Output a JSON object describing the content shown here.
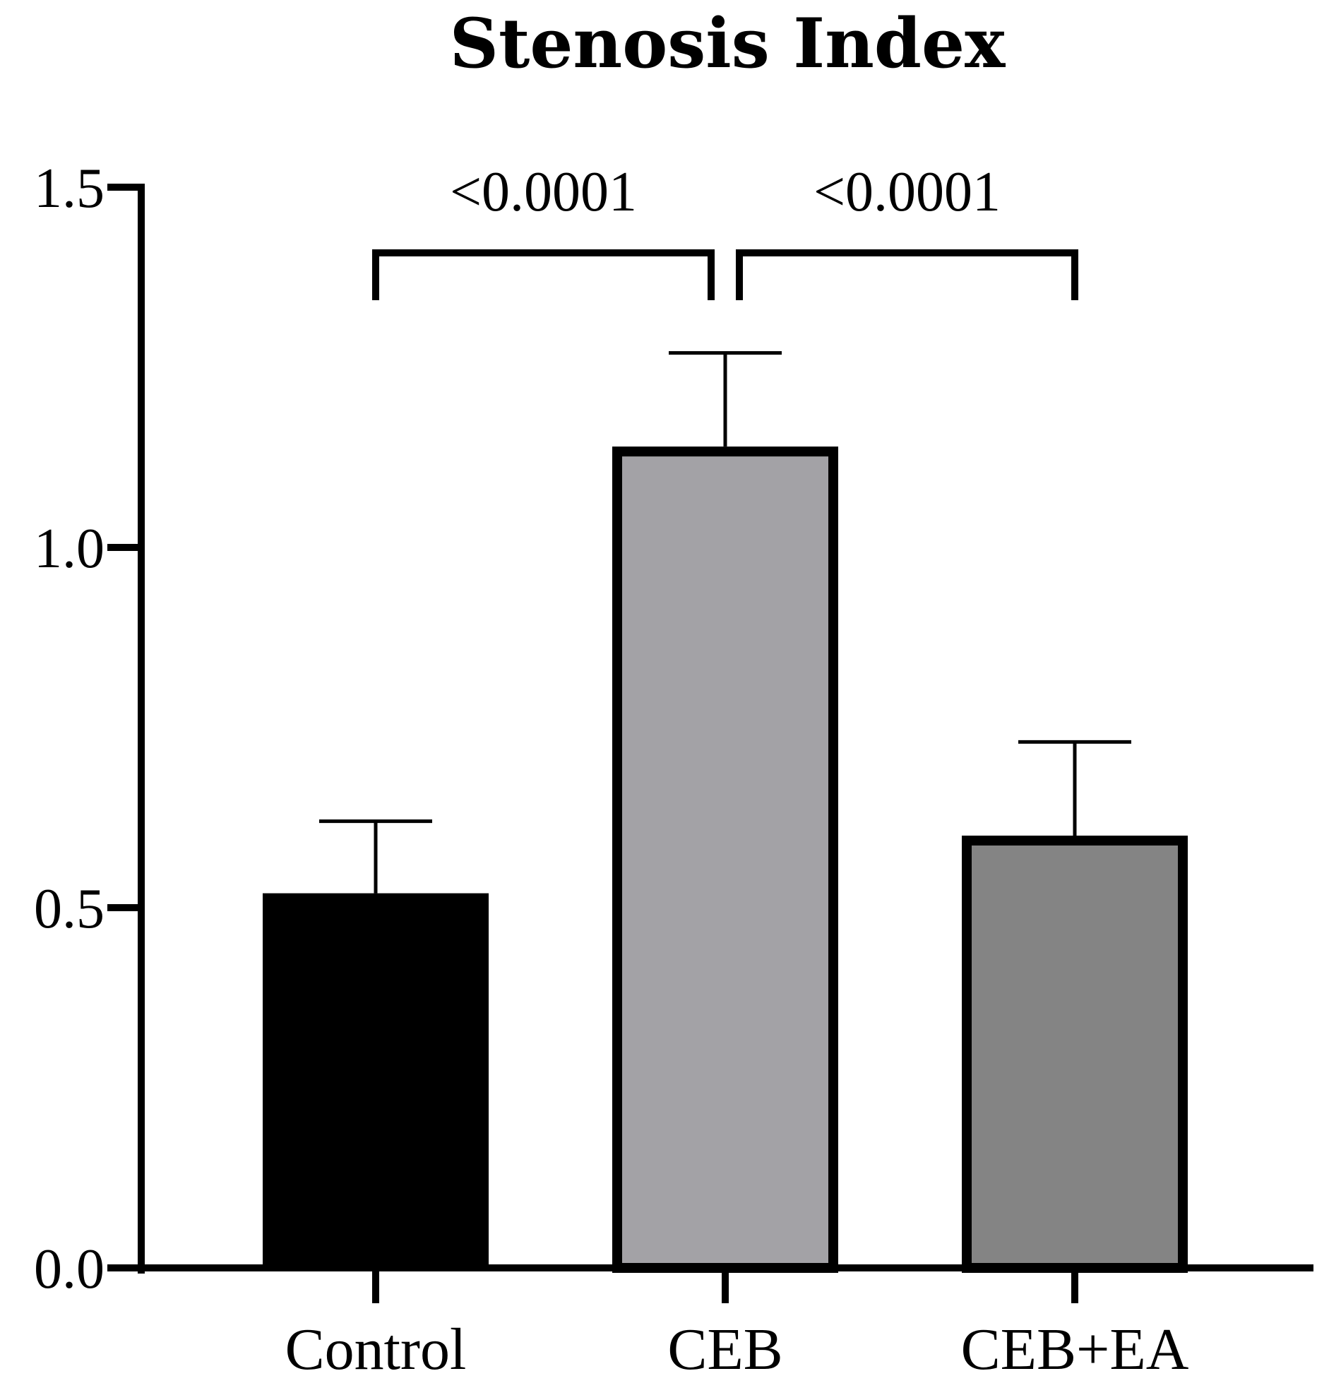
{
  "chart_data": {
    "type": "bar",
    "title": "Stenosis Index",
    "xlabel": "",
    "ylabel": "",
    "ylim": [
      0,
      1.5
    ],
    "yticks": [
      0.0,
      0.5,
      1.0,
      1.5
    ],
    "ytick_labels": [
      "0.0",
      "0.5",
      "1.0",
      "1.5"
    ],
    "categories": [
      "Control",
      "CEB",
      "CEB+EA"
    ],
    "values": [
      0.52,
      1.14,
      0.6
    ],
    "errors": [
      0.1,
      0.13,
      0.13
    ],
    "bar_colors": [
      "#000000",
      "#a3a2a6",
      "#848484"
    ],
    "significance": [
      {
        "from": 0,
        "to": 1,
        "label": "<0.0001"
      },
      {
        "from": 1,
        "to": 2,
        "label": "<0.0001"
      }
    ],
    "grid": false,
    "legend": "none"
  }
}
